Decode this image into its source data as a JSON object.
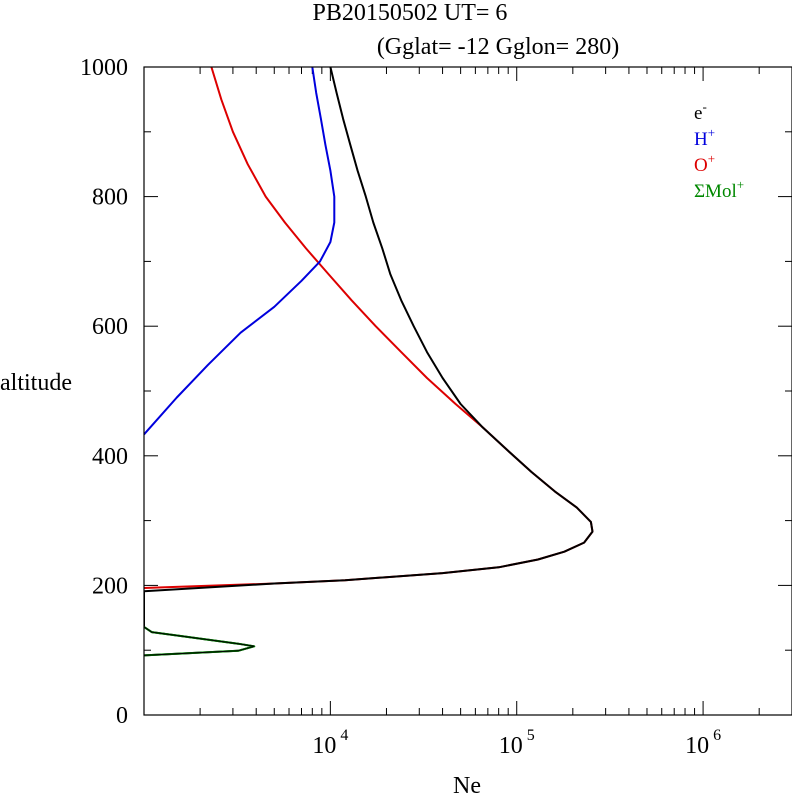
{
  "chart_data": {
    "type": "line",
    "title": "PB20150502   UT=  6",
    "subtitle": "(Gglat= -12   Gglon=  280)",
    "xlabel": "Ne",
    "ylabel": "altitude",
    "xscale": "log",
    "xlim": [
      1000,
      3000000
    ],
    "ylim": [
      0,
      1000
    ],
    "x_tick_labels": [
      {
        "value": 10000,
        "base": "10",
        "exp": "4"
      },
      {
        "value": 100000,
        "base": "10",
        "exp": "5"
      },
      {
        "value": 1000000,
        "base": "10",
        "exp": "6"
      }
    ],
    "y_ticks": [
      0,
      200,
      400,
      600,
      800,
      1000
    ],
    "y_tick_labels": [
      "0",
      "200",
      "400",
      "600",
      "800",
      "1000"
    ],
    "legend_position": "top-right",
    "series": [
      {
        "name": "e-",
        "label_base": "e",
        "label_sup": "-",
        "color": "#000000",
        "points": [
          [
            1000,
            92
          ],
          [
            3200,
            99
          ],
          [
            3900,
            106
          ],
          [
            3200,
            110
          ],
          [
            1100,
            128
          ],
          [
            1000,
            136
          ],
          [
            1000,
            191
          ],
          [
            5000,
            203
          ],
          [
            12000,
            208
          ],
          [
            40000,
            219
          ],
          [
            80000,
            228
          ],
          [
            130000,
            240
          ],
          [
            180000,
            252
          ],
          [
            230000,
            266
          ],
          [
            255000,
            283
          ],
          [
            250000,
            298
          ],
          [
            210000,
            320
          ],
          [
            160000,
            345
          ],
          [
            120000,
            375
          ],
          [
            88000,
            410
          ],
          [
            65000,
            445
          ],
          [
            50000,
            480
          ],
          [
            40000,
            520
          ],
          [
            33000,
            560
          ],
          [
            28000,
            600
          ],
          [
            24000,
            640
          ],
          [
            21000,
            680
          ],
          [
            19000,
            720
          ],
          [
            17000,
            760
          ],
          [
            15500,
            800
          ],
          [
            14000,
            840
          ],
          [
            12800,
            880
          ],
          [
            11700,
            920
          ],
          [
            10800,
            960
          ],
          [
            10000,
            1000
          ]
        ]
      },
      {
        "name": "H+",
        "label_base": "H",
        "label_sup": "+",
        "color": "#0000dd",
        "points": [
          [
            1000,
            433
          ],
          [
            1500,
            490
          ],
          [
            2200,
            540
          ],
          [
            3300,
            590
          ],
          [
            5000,
            630
          ],
          [
            7000,
            670
          ],
          [
            8800,
            700
          ],
          [
            10000,
            730
          ],
          [
            10500,
            760
          ],
          [
            10500,
            800
          ],
          [
            10000,
            840
          ],
          [
            9400,
            880
          ],
          [
            8900,
            920
          ],
          [
            8400,
            960
          ],
          [
            8000,
            1000
          ]
        ]
      },
      {
        "name": "O+",
        "label_base": "O",
        "label_sup": "+",
        "color": "#dd0000",
        "points": [
          [
            1000,
            196
          ],
          [
            5000,
            203
          ],
          [
            12000,
            208
          ],
          [
            40000,
            219
          ],
          [
            80000,
            228
          ],
          [
            130000,
            240
          ],
          [
            180000,
            252
          ],
          [
            230000,
            266
          ],
          [
            255000,
            283
          ],
          [
            250000,
            298
          ],
          [
            210000,
            320
          ],
          [
            160000,
            345
          ],
          [
            120000,
            375
          ],
          [
            88000,
            410
          ],
          [
            65000,
            445
          ],
          [
            47000,
            480
          ],
          [
            33000,
            520
          ],
          [
            24000,
            560
          ],
          [
            17500,
            600
          ],
          [
            13000,
            640
          ],
          [
            9800,
            680
          ],
          [
            7400,
            720
          ],
          [
            5700,
            760
          ],
          [
            4500,
            800
          ],
          [
            3600,
            850
          ],
          [
            3000,
            900
          ],
          [
            2600,
            950
          ],
          [
            2300,
            1000
          ]
        ]
      },
      {
        "name": "ΣMol+",
        "label_base": "ΣMol",
        "label_sup": "+",
        "color": "#008800",
        "points": [
          [
            1000,
            92
          ],
          [
            3200,
            99
          ],
          [
            3900,
            106
          ],
          [
            3200,
            110
          ],
          [
            1100,
            128
          ],
          [
            1000,
            136
          ]
        ]
      }
    ]
  }
}
